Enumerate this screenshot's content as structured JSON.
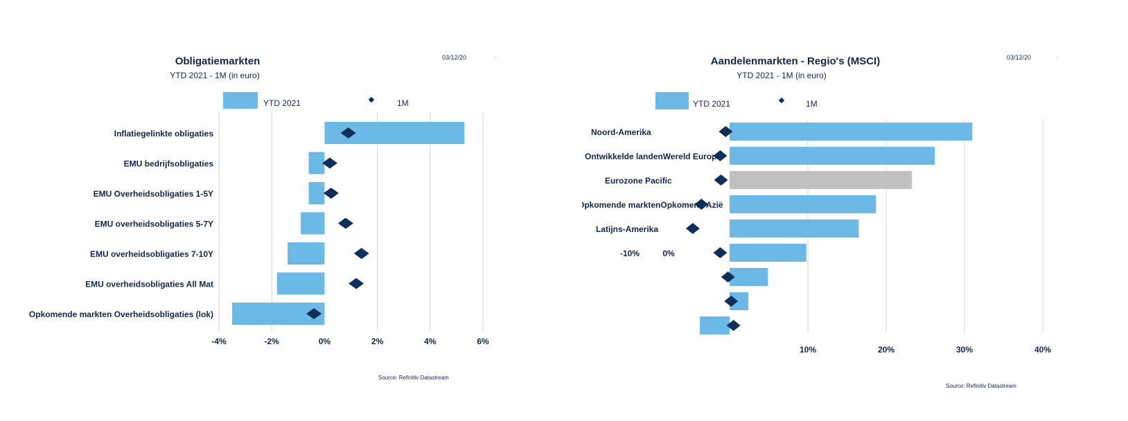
{
  "chart_data": [
    {
      "type": "bar",
      "title": "Obligatiemarkten",
      "subtitle": "YTD 2021 - 1M (in euro)",
      "date": "03/12/20",
      "source": "Source: Refinitiv Datastream",
      "legend": {
        "bar_label": "YTD 2021",
        "marker_label": "1M",
        "placement": "top"
      },
      "orientation": "horizontal",
      "categories": [
        "Inflatiegelinkte obligaties",
        "EMU bedrijfsobligaties",
        "EMU Overheidsobligaties 1-5Y",
        "EMU overheidsobligaties 5-7Y",
        "EMU overheidsobligaties 7-10Y",
        "EMU overheidsobligaties All Mat",
        "Opkomende markten Overheidsobligaties (lok)"
      ],
      "series": [
        {
          "name": "YTD 2021",
          "kind": "bar",
          "values": [
            5.3,
            -0.6,
            -0.6,
            -0.9,
            -1.4,
            -1.8,
            -3.5
          ]
        },
        {
          "name": "1M",
          "kind": "marker",
          "values": [
            0.9,
            0.2,
            0.25,
            0.8,
            1.4,
            1.2,
            -0.4
          ]
        }
      ],
      "xlim": [
        -4,
        6
      ],
      "xticks": [
        "-4%",
        "-2%",
        "0%",
        "2%",
        "4%",
        "6%"
      ],
      "grid": true,
      "colors": {
        "bar": "#6cb8e6",
        "marker": "#0f2f5a"
      }
    },
    {
      "type": "bar",
      "title": "Aandelenmarkten - Regio's (MSCI)",
      "subtitle": "YTD 2021 - 1M (in euro)",
      "date": "03/12/20",
      "source": "Source: Refinitiv Datastream",
      "legend": {
        "bar_label": "YTD 2021",
        "marker_label": "1M",
        "placement": "top"
      },
      "orientation": "horizontal",
      "categories": [
        "Noord-Amerika",
        "Ontwikkelde landenWereld Europa",
        "Eurozone Pacific",
        "Opkomende marktenOpkomend Azië",
        "Latijns-Amerika",
        "-10%          0%",
        "",
        "",
        ""
      ],
      "series": [
        {
          "name": "YTD 2021",
          "kind": "bar",
          "values": [
            31,
            26.2,
            23.3,
            18.7,
            16.5,
            9.8,
            4.9,
            2.4,
            -3.8
          ],
          "highlight_index": 2
        },
        {
          "name": "1M",
          "kind": "marker",
          "values": [
            -0.5,
            -1.2,
            -1.1,
            -3.6,
            -4.7,
            -1.2,
            -0.2,
            0.2,
            0.5
          ]
        }
      ],
      "xlim": [
        -4,
        40
      ],
      "xticks": [
        "10%",
        "20%",
        "30%",
        "40%"
      ],
      "grid": true,
      "colors": {
        "bar": "#6cb8e6",
        "highlight": "#c0c0c0",
        "marker": "#0f2f5a"
      }
    }
  ]
}
